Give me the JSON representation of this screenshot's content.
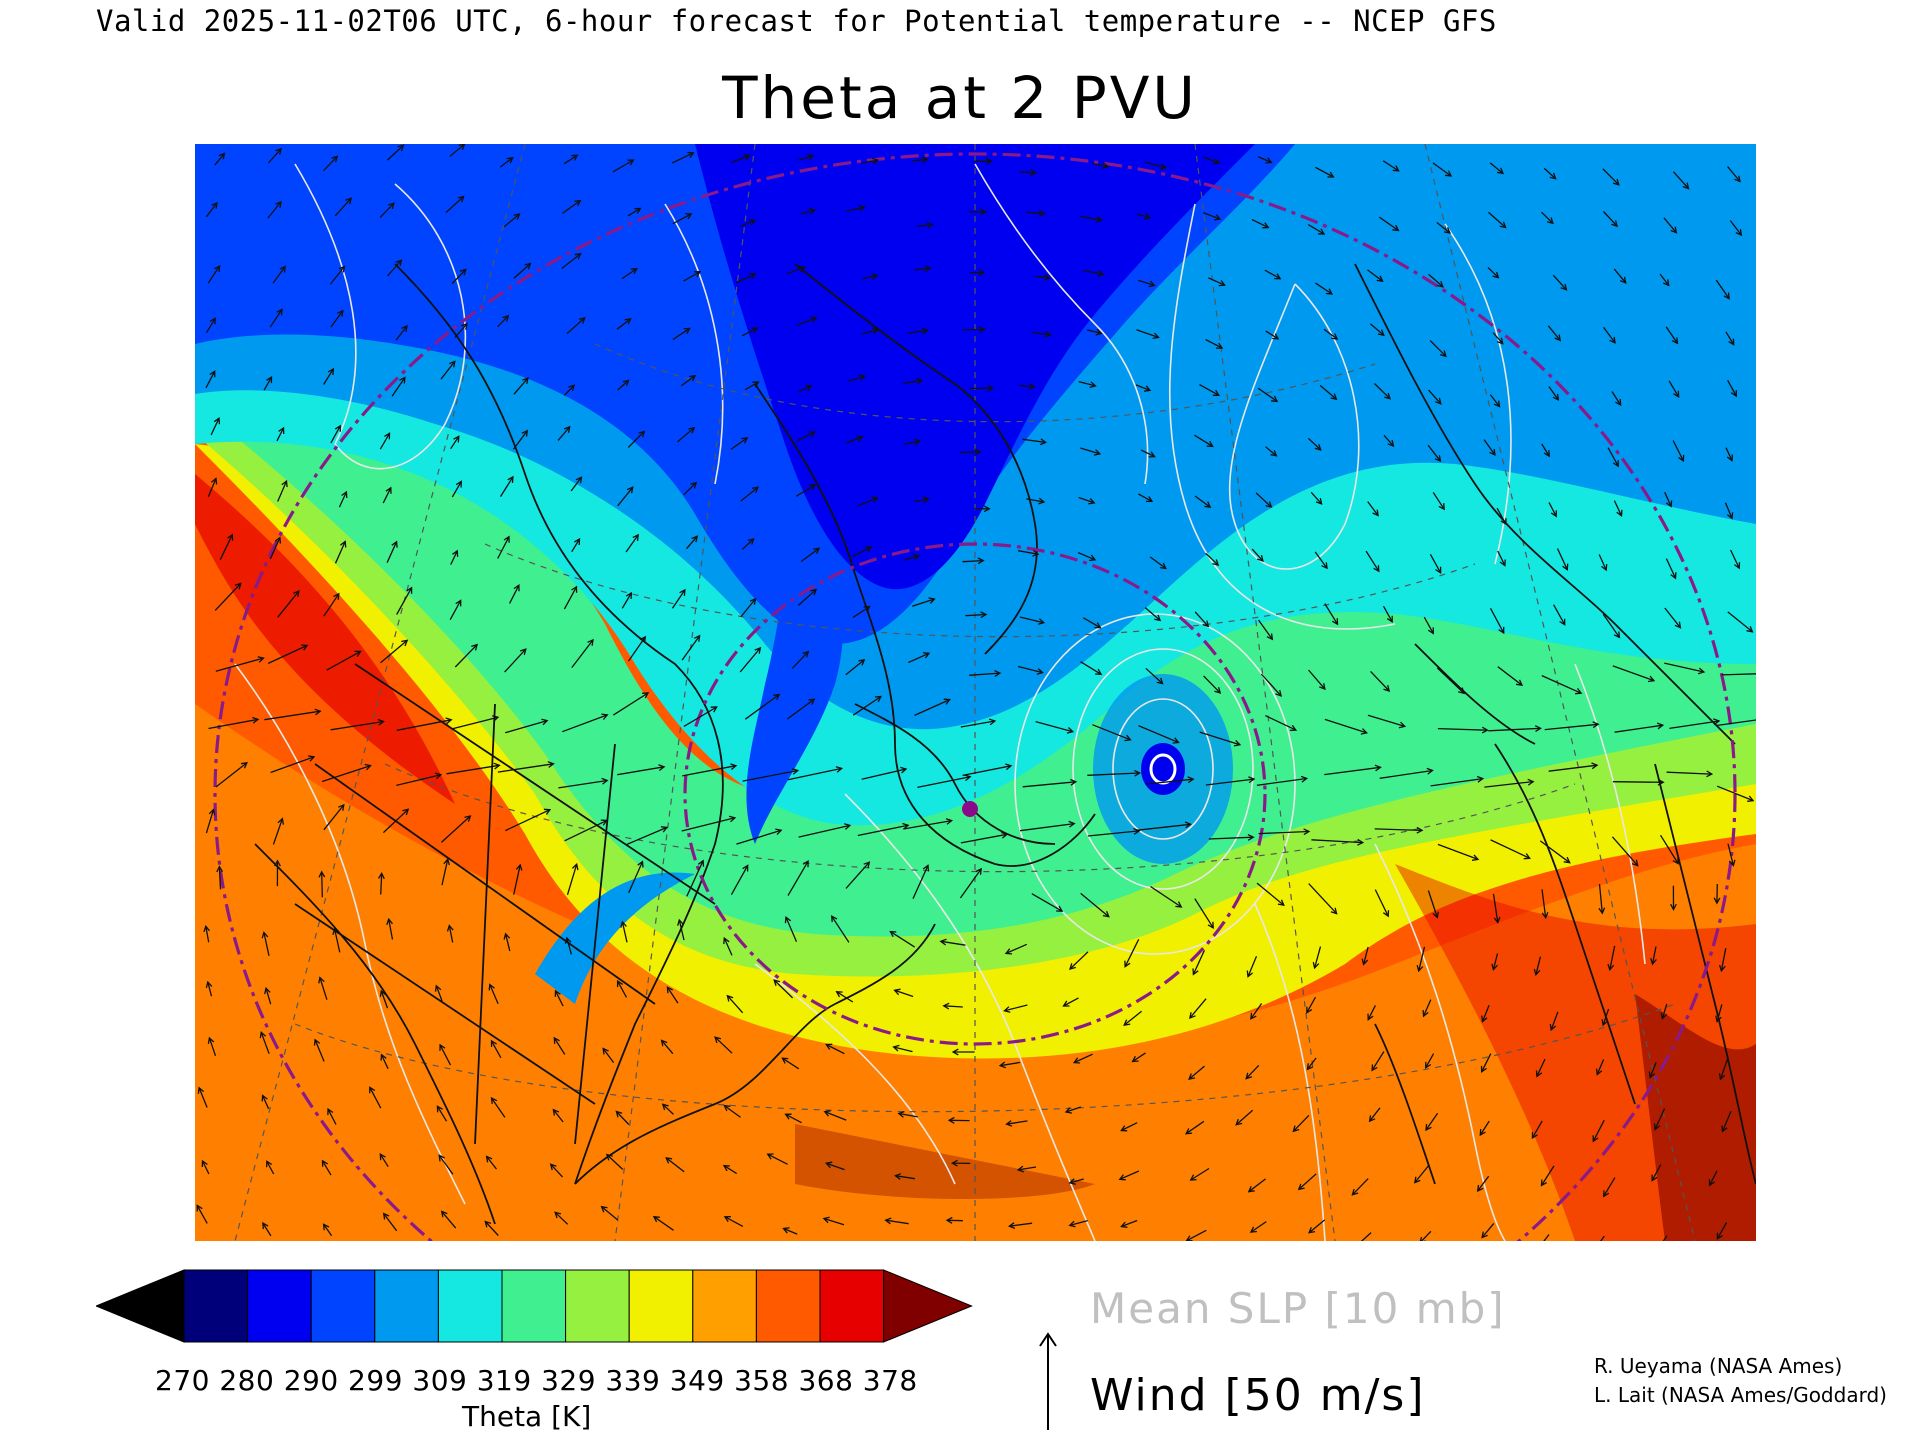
{
  "header": {
    "valid_line": "Valid 2025-11-02T06 UTC, 6-hour forecast for Potential temperature -- NCEP GFS"
  },
  "title": "Theta at 2 PVU",
  "colorbar": {
    "title": "Theta [K]",
    "tick_labels": "270 280 290 299 309 319 329 339 349 358 368 378",
    "colors": [
      "#000000",
      "#00007a",
      "#0000f0",
      "#0044ff",
      "#0099f0",
      "#14e8e0",
      "#40f090",
      "#96f040",
      "#f0f000",
      "#ffa000",
      "#ff5a00",
      "#e60000",
      "#800000"
    ]
  },
  "legend": {
    "slp": "Mean SLP [10 mb]",
    "wind": "Wind [50 m/s]"
  },
  "credits": {
    "line1": "R. Ueyama (NASA Ames)",
    "line2": "L. Lait (NASA Ames/Goddard)"
  },
  "map": {
    "projection": "polar stereographic, North Atlantic sector",
    "field_colors": {
      "deep_blue": "#0000f0",
      "blue": "#0044ff",
      "light_blue": "#0099f0",
      "cyan": "#14e8e0",
      "green": "#40f090",
      "lime": "#96f040",
      "yellow": "#f0f000",
      "orange": "#ffa000",
      "red_orange": "#ff5a00",
      "red": "#e60000",
      "dark_red": "#800000"
    },
    "slp_contour_color": "#e8e8e8",
    "marker_color": "#8a0a8a",
    "flight_track_color": "#8a1a8a"
  }
}
